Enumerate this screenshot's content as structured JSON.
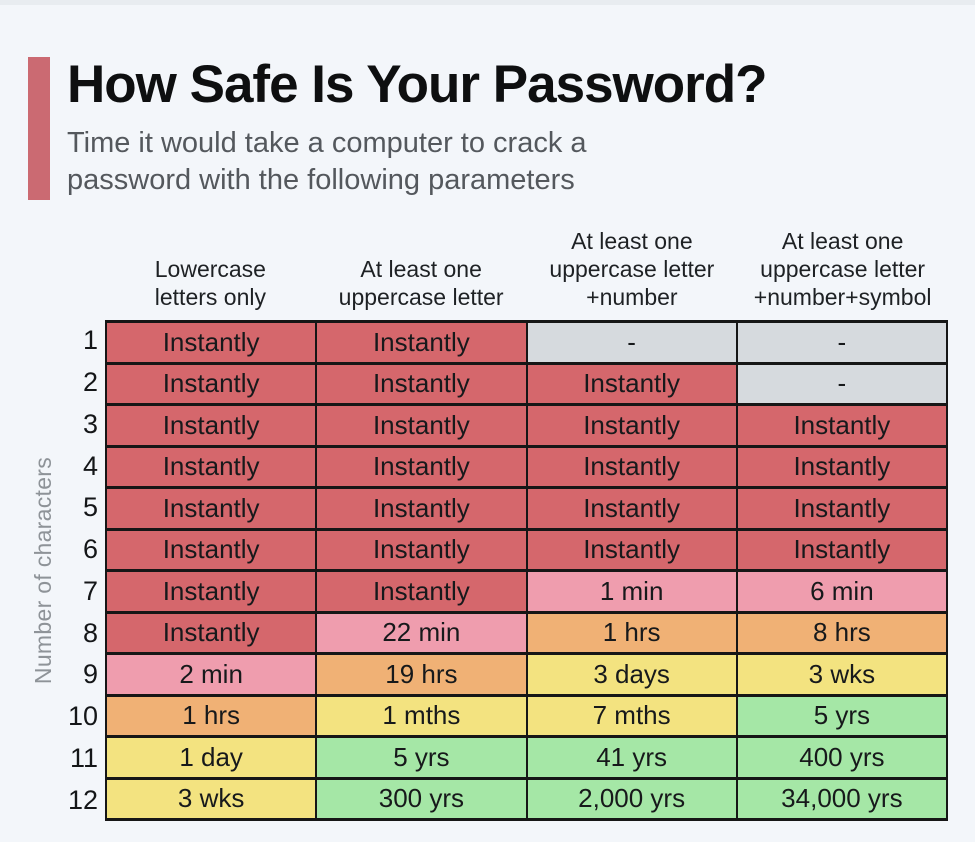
{
  "page": {
    "background_color": "#f3f6fa",
    "top_strip_color": "#e8ecf0",
    "accent_color": "#cb6a72",
    "border_color": "#161616"
  },
  "header": {
    "title": "How Safe Is Your Password?",
    "subtitle_line1": "Time it would take a computer to crack a",
    "subtitle_line2": "password with the following parameters"
  },
  "table": {
    "column_lines": [
      [
        "Lowercase",
        "letters only"
      ],
      [
        "At least one",
        "uppercase letter"
      ],
      [
        "At least one",
        "uppercase letter",
        "+number"
      ],
      [
        "At least one",
        "uppercase letter",
        "+number+symbol"
      ]
    ]
  },
  "chart_data": {
    "type": "table",
    "title": "How Safe Is Your Password?",
    "subtitle": "Time it would take a computer to crack a password with the following parameters",
    "ylabel": "Number of characters",
    "categories": [
      "Lowercase letters only",
      "At least one uppercase letter",
      "At least one uppercase letter +number",
      "At least one uppercase letter +number+symbol"
    ],
    "palette": {
      "red": "#d5676c",
      "pink": "#ef9dae",
      "orange": "#f0b175",
      "yellow": "#f3e380",
      "green": "#a5e7a6",
      "gray": "#d6dade"
    },
    "rows": [
      {
        "chars": 1,
        "cells": [
          {
            "text": "Instantly",
            "color": "red"
          },
          {
            "text": "Instantly",
            "color": "red"
          },
          {
            "text": "-",
            "color": "gray"
          },
          {
            "text": "-",
            "color": "gray"
          }
        ]
      },
      {
        "chars": 2,
        "cells": [
          {
            "text": "Instantly",
            "color": "red"
          },
          {
            "text": "Instantly",
            "color": "red"
          },
          {
            "text": "Instantly",
            "color": "red"
          },
          {
            "text": "-",
            "color": "gray"
          }
        ]
      },
      {
        "chars": 3,
        "cells": [
          {
            "text": "Instantly",
            "color": "red"
          },
          {
            "text": "Instantly",
            "color": "red"
          },
          {
            "text": "Instantly",
            "color": "red"
          },
          {
            "text": "Instantly",
            "color": "red"
          }
        ]
      },
      {
        "chars": 4,
        "cells": [
          {
            "text": "Instantly",
            "color": "red"
          },
          {
            "text": "Instantly",
            "color": "red"
          },
          {
            "text": "Instantly",
            "color": "red"
          },
          {
            "text": "Instantly",
            "color": "red"
          }
        ]
      },
      {
        "chars": 5,
        "cells": [
          {
            "text": "Instantly",
            "color": "red"
          },
          {
            "text": "Instantly",
            "color": "red"
          },
          {
            "text": "Instantly",
            "color": "red"
          },
          {
            "text": "Instantly",
            "color": "red"
          }
        ]
      },
      {
        "chars": 6,
        "cells": [
          {
            "text": "Instantly",
            "color": "red"
          },
          {
            "text": "Instantly",
            "color": "red"
          },
          {
            "text": "Instantly",
            "color": "red"
          },
          {
            "text": "Instantly",
            "color": "red"
          }
        ]
      },
      {
        "chars": 7,
        "cells": [
          {
            "text": "Instantly",
            "color": "red"
          },
          {
            "text": "Instantly",
            "color": "red"
          },
          {
            "text": "1 min",
            "color": "pink"
          },
          {
            "text": "6 min",
            "color": "pink"
          }
        ]
      },
      {
        "chars": 8,
        "cells": [
          {
            "text": "Instantly",
            "color": "red"
          },
          {
            "text": "22 min",
            "color": "pink"
          },
          {
            "text": "1 hrs",
            "color": "orange"
          },
          {
            "text": "8 hrs",
            "color": "orange"
          }
        ]
      },
      {
        "chars": 9,
        "cells": [
          {
            "text": "2 min",
            "color": "pink"
          },
          {
            "text": "19 hrs",
            "color": "orange"
          },
          {
            "text": "3 days",
            "color": "yellow"
          },
          {
            "text": "3 wks",
            "color": "yellow"
          }
        ]
      },
      {
        "chars": 10,
        "cells": [
          {
            "text": "1 hrs",
            "color": "orange"
          },
          {
            "text": "1 mths",
            "color": "yellow"
          },
          {
            "text": "7 mths",
            "color": "yellow"
          },
          {
            "text": "5 yrs",
            "color": "green"
          }
        ]
      },
      {
        "chars": 11,
        "cells": [
          {
            "text": "1 day",
            "color": "yellow"
          },
          {
            "text": "5 yrs",
            "color": "green"
          },
          {
            "text": "41 yrs",
            "color": "green"
          },
          {
            "text": "400 yrs",
            "color": "green"
          }
        ]
      },
      {
        "chars": 12,
        "cells": [
          {
            "text": "3 wks",
            "color": "yellow"
          },
          {
            "text": "300 yrs",
            "color": "green"
          },
          {
            "text": "2,000 yrs",
            "color": "green"
          },
          {
            "text": "34,000 yrs",
            "color": "green"
          }
        ]
      }
    ]
  }
}
